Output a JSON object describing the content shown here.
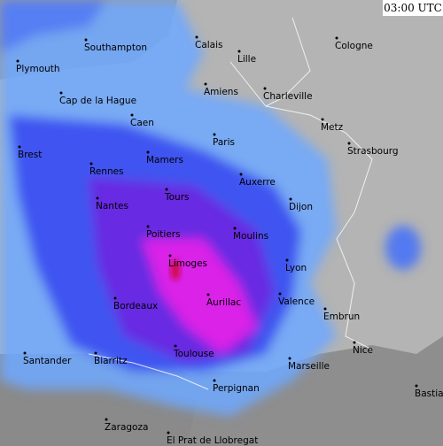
{
  "timestamp": "03:00 UTC",
  "cities": [
    "Southampton",
    "Calais",
    "Lille",
    "Cologne",
    "Plymouth",
    "Amiens",
    "Charleville",
    "Cap de la Hague",
    "Caen",
    "Metz",
    "Paris",
    "Strasbourg",
    "Brest",
    "Mamers",
    "Rennes",
    "Auxerre",
    "Tours",
    "Nantes",
    "Dijon",
    "Poitiers",
    "Moulins",
    "Limoges",
    "Lyon",
    "Valence",
    "Bordeaux",
    "Aurillac",
    "Embrun",
    "Nice",
    "Santander",
    "Biarritz",
    "Toulouse",
    "Marseille",
    "Bastia",
    "Perpignan",
    "Zaragoza",
    "El Prat de Llobregat"
  ]
}
